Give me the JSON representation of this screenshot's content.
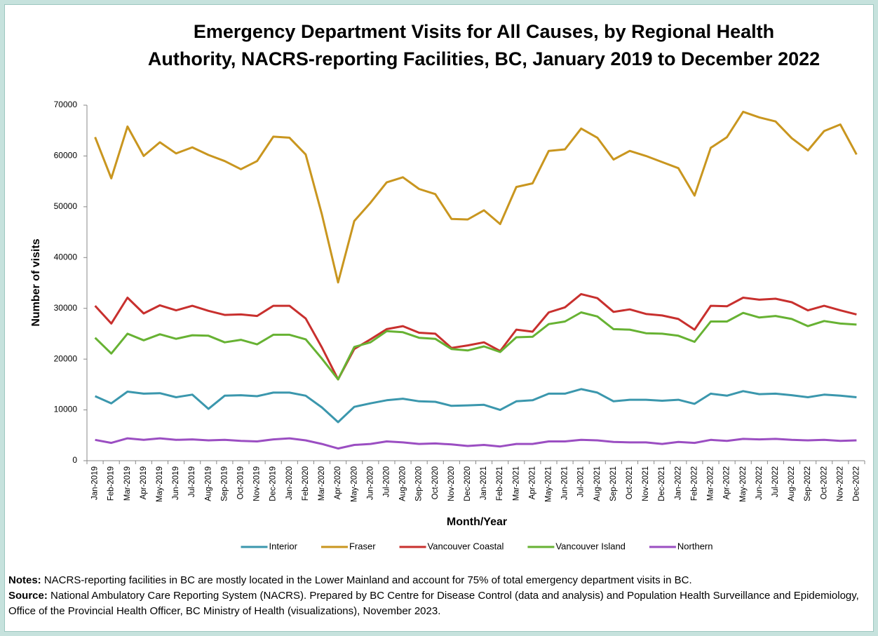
{
  "chart_data": {
    "type": "line",
    "title": [
      "Emergency Department Visits for All Causes, by Regional Health",
      "Authority, NACRS-reporting Facilities, BC, January 2019 to December 2022"
    ],
    "x_label": "Month/Year",
    "y_label": "Number of visits",
    "ylim": [
      0,
      70000
    ],
    "yticks": [
      0,
      10000,
      20000,
      30000,
      40000,
      50000,
      60000,
      70000
    ],
    "grid": false,
    "legend": "bottom",
    "categories": [
      "Jan-2019",
      "Feb-2019",
      "Mar-2019",
      "Apr-2019",
      "May-2019",
      "Jun-2019",
      "Jul-2019",
      "Aug-2019",
      "Sep-2019",
      "Oct-2019",
      "Nov-2019",
      "Dec-2019",
      "Jan-2020",
      "Feb-2020",
      "Mar-2020",
      "Apr-2020",
      "May-2020",
      "Jun-2020",
      "Jul-2020",
      "Aug-2020",
      "Sep-2020",
      "Oct-2020",
      "Nov-2020",
      "Dec-2020",
      "Jan-2021",
      "Feb-2021",
      "Mar-2021",
      "Apr-2021",
      "May-2021",
      "Jun-2021",
      "Jul-2021",
      "Aug-2021",
      "Sep-2021",
      "Oct-2021",
      "Nov-2021",
      "Dec-2021",
      "Jan-2022",
      "Feb-2022",
      "Mar-2022",
      "Apr-2022",
      "May-2022",
      "Jun-2022",
      "Jul-2022",
      "Aug-2022",
      "Sep-2022",
      "Oct-2022",
      "Nov-2022",
      "Dec-2022"
    ],
    "series": [
      {
        "name": "Interior",
        "color": "#3b97ad",
        "values": [
          12700,
          11300,
          13600,
          13200,
          13300,
          12500,
          13000,
          10200,
          12800,
          12900,
          12700,
          13400,
          13400,
          12800,
          10500,
          7600,
          10600,
          11300,
          11900,
          12200,
          11700,
          11600,
          10800,
          10900,
          11000,
          10000,
          11700,
          11900,
          13200,
          13200,
          14100,
          13400,
          11700,
          12000,
          12000,
          11800,
          12000,
          11200,
          13200,
          12800,
          13700,
          13100,
          13200,
          12900,
          12500,
          13000,
          12800,
          12500
        ]
      },
      {
        "name": "Fraser",
        "color": "#c9961f",
        "values": [
          63700,
          55600,
          65800,
          60000,
          62700,
          60500,
          61700,
          60200,
          59000,
          57400,
          59000,
          63800,
          63600,
          60300,
          48500,
          35100,
          47200,
          50800,
          54800,
          55800,
          53500,
          52500,
          47600,
          47500,
          49300,
          46600,
          53900,
          54600,
          61000,
          61300,
          65400,
          63600,
          59300,
          61000,
          60000,
          58800,
          57600,
          52200,
          61600,
          63700,
          68700,
          67600,
          66800,
          63500,
          61100,
          64900,
          66200,
          60300
        ]
      },
      {
        "name": "Vancouver Coastal",
        "color": "#c8302e",
        "values": [
          30500,
          27000,
          32100,
          29000,
          30600,
          29600,
          30500,
          29500,
          28700,
          28800,
          28500,
          30500,
          30500,
          28000,
          22300,
          16000,
          22000,
          23900,
          25900,
          26500,
          25200,
          25000,
          22200,
          22700,
          23300,
          21600,
          25800,
          25400,
          29200,
          30200,
          32800,
          32000,
          29300,
          29800,
          28900,
          28600,
          27900,
          25800,
          30500,
          30400,
          32100,
          31700,
          31900,
          31200,
          29600,
          30500,
          29600,
          28800
        ]
      },
      {
        "name": "Vancouver Island",
        "color": "#67b233",
        "values": [
          24200,
          21100,
          25000,
          23700,
          24900,
          24000,
          24700,
          24600,
          23300,
          23800,
          22900,
          24800,
          24800,
          23900,
          20100,
          16000,
          22400,
          23300,
          25500,
          25300,
          24200,
          24000,
          22000,
          21700,
          22500,
          21400,
          24300,
          24400,
          26900,
          27400,
          29200,
          28400,
          25900,
          25800,
          25100,
          25000,
          24600,
          23400,
          27400,
          27400,
          29100,
          28200,
          28500,
          27900,
          26500,
          27500,
          27000,
          26800
        ]
      },
      {
        "name": "Northern",
        "color": "#9b4ec2",
        "values": [
          4100,
          3500,
          4400,
          4100,
          4400,
          4100,
          4200,
          4000,
          4100,
          3900,
          3800,
          4200,
          4400,
          4000,
          3300,
          2400,
          3100,
          3300,
          3800,
          3600,
          3300,
          3400,
          3200,
          2900,
          3100,
          2800,
          3300,
          3300,
          3800,
          3800,
          4100,
          4000,
          3700,
          3600,
          3600,
          3300,
          3700,
          3500,
          4100,
          3900,
          4300,
          4200,
          4300,
          4100,
          4000,
          4100,
          3900,
          4000
        ]
      }
    ]
  },
  "notes": [
    {
      "label": "Notes:",
      "text": "NACRS-reporting facilities in BC are mostly located in the Lower Mainland and account for 75% of total emergency department visits in BC."
    },
    {
      "label": "Source:",
      "text": "National Ambulatory Care Reporting System (NACRS). Prepared by BC Centre for Disease Control (data and analysis) and Population Health Surveillance and Epidemiology, Office of the Provincial Health Officer, BC Ministry of Health (visualizations), November 2023."
    }
  ]
}
